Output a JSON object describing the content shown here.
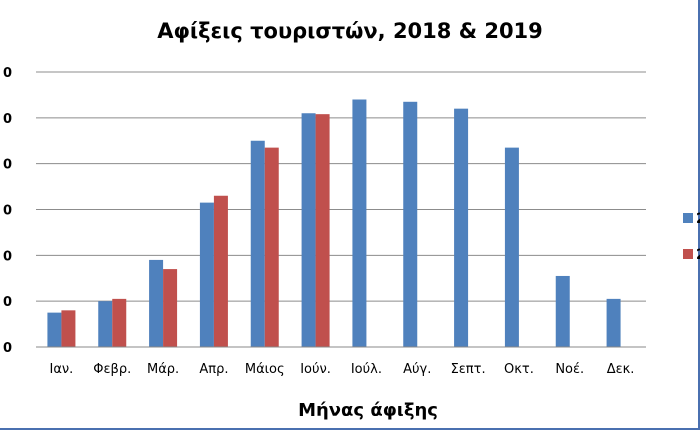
{
  "chart_data": {
    "type": "bar",
    "title": "Αφίξεις τουριστών, 2018 & 2019",
    "xlabel": "Μήνας άφιξης",
    "ylabel": "",
    "categories": [
      "Ιαν.",
      "Φεβρ.",
      "Μάρ.",
      "Απρ.",
      "Μάιος",
      "Ιούν.",
      "Ιούλ.",
      "Αύγ.",
      "Σεπτ.",
      "Οκτ.",
      "Νοέ.",
      "Δεκ."
    ],
    "ytick_labels": [
      "0",
      "0",
      "0",
      "0",
      "0",
      "0",
      "0"
    ],
    "ylim": [
      0,
      6
    ],
    "grid": true,
    "legend_position": "right",
    "series": [
      {
        "name": "2",
        "color": "#4f81bd",
        "values": [
          0.75,
          1.0,
          1.9,
          3.15,
          4.5,
          5.1,
          5.4,
          5.35,
          5.2,
          4.35,
          1.55,
          1.05
        ]
      },
      {
        "name": "2",
        "color": "#c0504d",
        "values": [
          0.8,
          1.05,
          1.7,
          3.3,
          4.35,
          5.08,
          null,
          null,
          null,
          null,
          null,
          null
        ]
      }
    ]
  }
}
